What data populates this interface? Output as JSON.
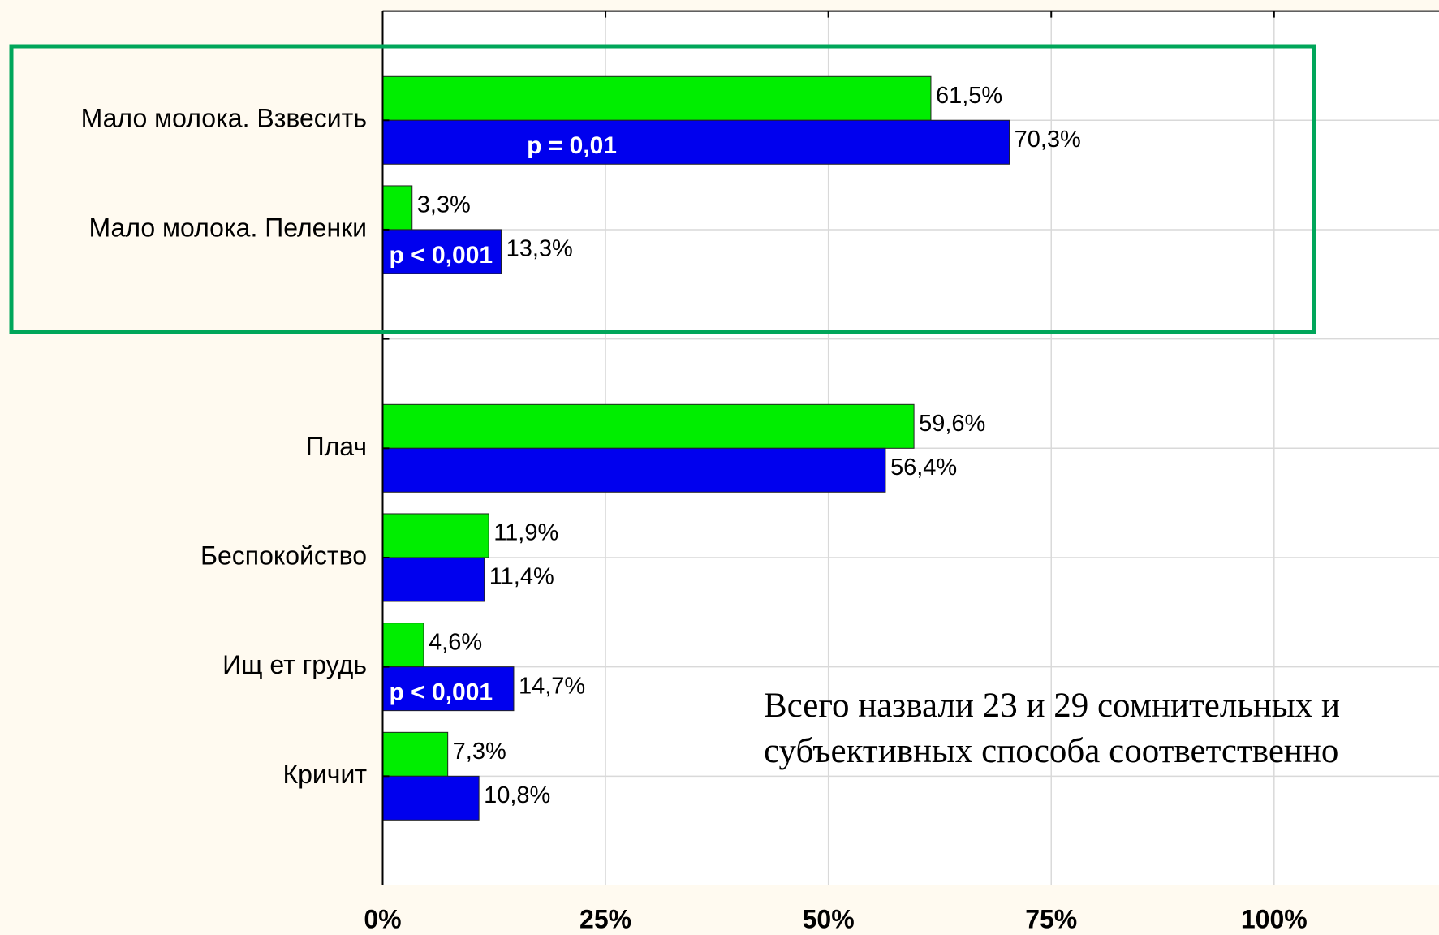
{
  "chart_data": {
    "type": "bar",
    "orientation": "horizontal",
    "categories": [
      "Мало молока. Взвесить",
      "Мало молока. Пеленки",
      null,
      "Плач",
      "Беспокойство",
      "Ищ ет грудь",
      "Кричит"
    ],
    "series": [
      {
        "color": "#00ee00",
        "values": [
          61.5,
          3.3,
          null,
          59.6,
          11.9,
          4.6,
          7.3
        ],
        "value_labels": [
          "61,5%",
          "3,3%",
          null,
          "59,6%",
          "11,9%",
          "4,6%",
          "7,3%"
        ]
      },
      {
        "color": "#0000ee",
        "values": [
          70.3,
          13.3,
          null,
          56.4,
          11.4,
          14.7,
          10.8
        ],
        "value_labels": [
          "70,3%",
          "13,3%",
          null,
          "56,4%",
          "11,4%",
          "14,7%",
          "10,8%"
        ]
      }
    ],
    "p_values": [
      "p = 0,01",
      "p < 0,001",
      null,
      null,
      null,
      "p < 0,001",
      null
    ],
    "xlim": [
      0,
      118.5
    ],
    "xticks": [
      {
        "value": 0,
        "label": "0%"
      },
      {
        "value": 25,
        "label": "25%"
      },
      {
        "value": 50,
        "label": "50%"
      },
      {
        "value": 75,
        "label": "75%"
      },
      {
        "value": 100,
        "label": "100%"
      }
    ],
    "grid": true,
    "annotation": [
      "Всего назвали 23 и 29 сомнительных и",
      "субъективных способа соответственно"
    ]
  }
}
